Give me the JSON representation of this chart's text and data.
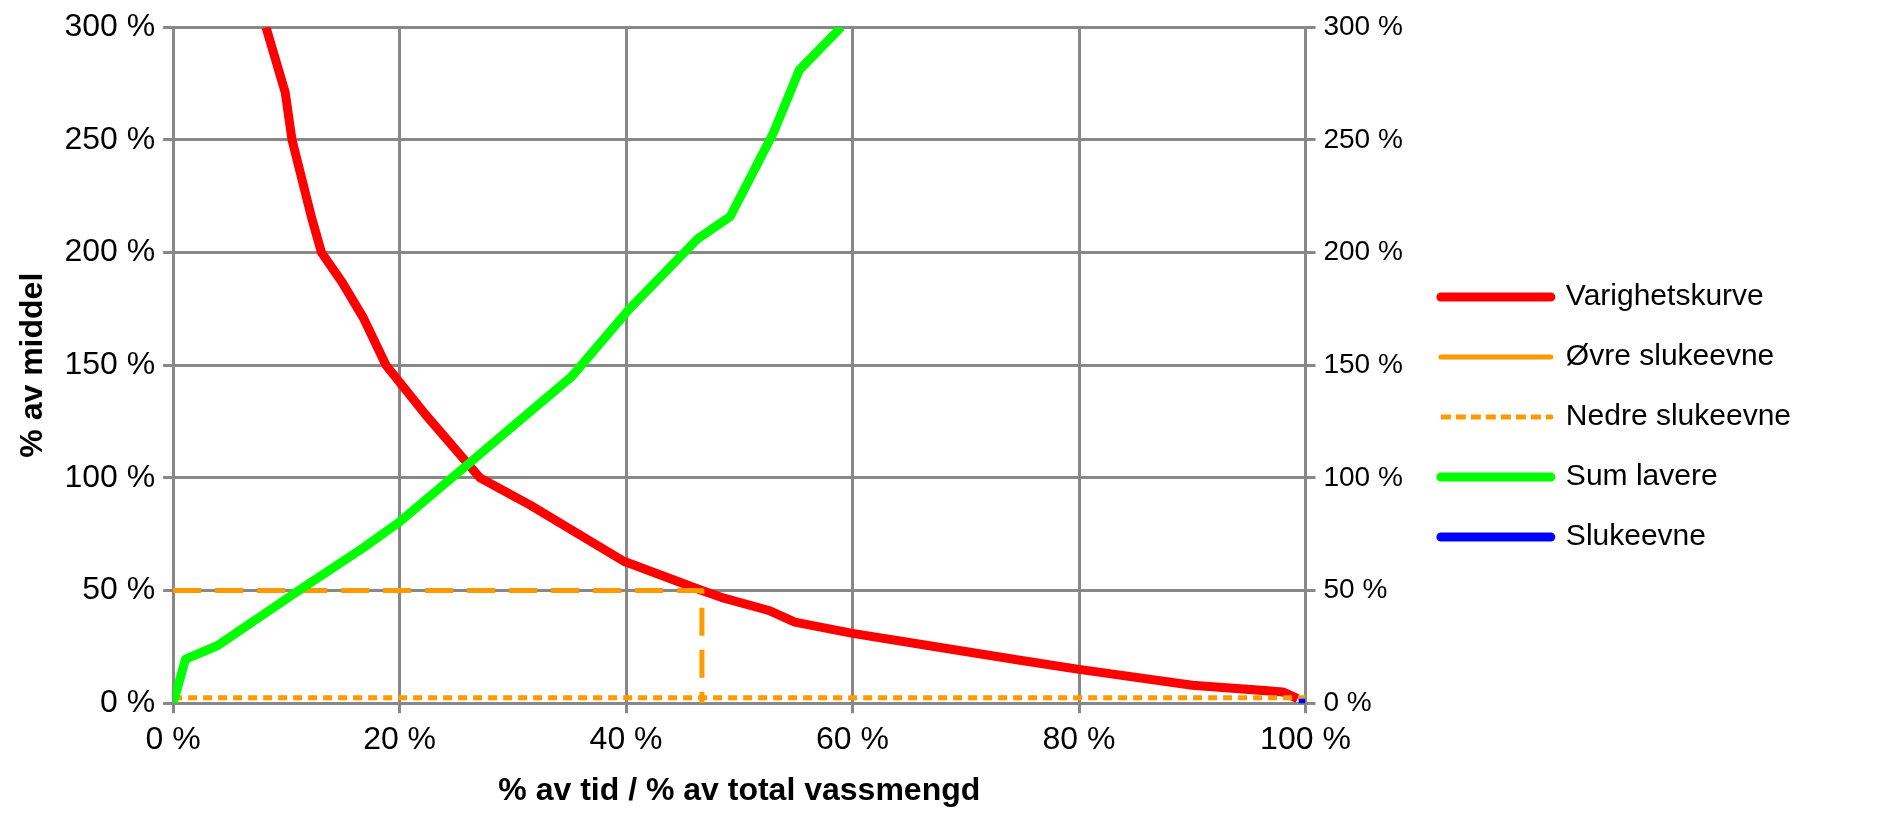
{
  "chart_data": {
    "type": "line",
    "xlabel": "% av tid / % av total vassmengd",
    "ylabel": "% av middel",
    "xlim": [
      0,
      100
    ],
    "xticks": [
      {
        "value": 0,
        "label": "0 %"
      },
      {
        "value": 20,
        "label": "20 %"
      },
      {
        "value": 40,
        "label": "40 %"
      },
      {
        "value": 60,
        "label": "60 %"
      },
      {
        "value": 80,
        "label": "80 %"
      },
      {
        "value": 100,
        "label": "100 %"
      }
    ],
    "ylim": [
      0,
      300
    ],
    "yticks": [
      {
        "value": 0,
        "label": "0 %"
      },
      {
        "value": 50,
        "label": "50 %"
      },
      {
        "value": 100,
        "label": "100 %"
      },
      {
        "value": 150,
        "label": "150 %"
      },
      {
        "value": 200,
        "label": "200 %"
      },
      {
        "value": 250,
        "label": "250 %"
      },
      {
        "value": 300,
        "label": "300 %"
      }
    ],
    "y2lim": [
      0,
      300
    ],
    "y2ticks": [
      {
        "value": 0,
        "label": "0 %"
      },
      {
        "value": 50,
        "label": "50 %"
      },
      {
        "value": 100,
        "label": "100 %"
      },
      {
        "value": 150,
        "label": "150 %"
      },
      {
        "value": 200,
        "label": "200 %"
      },
      {
        "value": 250,
        "label": "250 %"
      },
      {
        "value": 300,
        "label": "300 %"
      }
    ],
    "grid": true,
    "legend": "right",
    "marker": "none",
    "series": [
      {
        "name": "Varighetskurve",
        "color": "#ff0000",
        "line_style": "solid",
        "x": [
          8.2,
          9.9,
          10.5,
          12.2,
          13.1,
          14.9,
          16.8,
          18.8,
          22.3,
          27.1,
          31.5,
          39.8,
          46.7,
          48.4,
          52.7,
          54.9,
          60,
          66.8,
          74.1,
          80,
          90,
          98,
          99.3
        ],
        "values": [
          300,
          271,
          250,
          216,
          200,
          187,
          171,
          150,
          128,
          100,
          88,
          63,
          50,
          47,
          41,
          36,
          31,
          25.5,
          19.6,
          15,
          8,
          5,
          2
        ]
      },
      {
        "name": "Øvre slukeevne",
        "color": "#ff9900",
        "line_style": "dashed",
        "x": [
          0,
          46.7,
          46.7
        ],
        "values": [
          50,
          50,
          0
        ]
      },
      {
        "name": "Nedre slukeevne",
        "color": "#ff9900",
        "line_style": "dotted",
        "x": [
          0,
          100
        ],
        "values": [
          2.4,
          2.4
        ]
      },
      {
        "name": "Sum lavere",
        "color": "#00ff00",
        "line_style": "solid",
        "x": [
          0,
          1.1,
          3.9,
          10.8,
          16.8,
          20,
          26.5,
          35.2,
          40.3,
          46.3,
          49.2,
          53,
          55.3,
          59
        ],
        "values": [
          0,
          19.6,
          25.5,
          49,
          69,
          80.5,
          108,
          145,
          175,
          206,
          216,
          253,
          281,
          300
        ]
      },
      {
        "name": "Slukeevne",
        "color": "#0000ff",
        "line_style": "solid",
        "x": [
          99.4,
          100
        ],
        "values": [
          0,
          0
        ]
      }
    ]
  }
}
